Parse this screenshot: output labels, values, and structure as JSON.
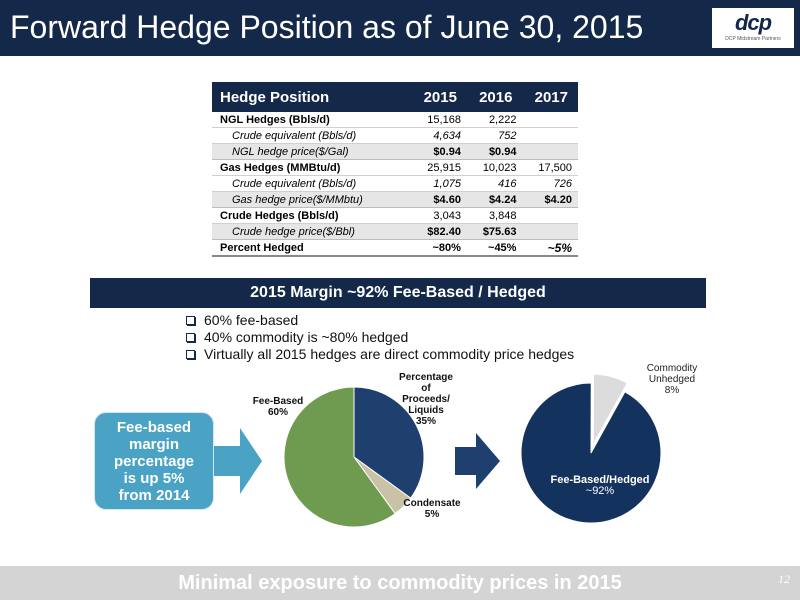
{
  "title": "Forward Hedge Position as of June 30, 2015",
  "logo": {
    "text": "dcp",
    "subtitle": "DCP Midstream Partners"
  },
  "table": {
    "headers": [
      "Hedge Position",
      "2015",
      "2016",
      "2017"
    ],
    "rows": [
      {
        "type": "main",
        "label": "NGL Hedges (Bbls/d)",
        "values": [
          "15,168",
          "2,222",
          ""
        ]
      },
      {
        "type": "sub",
        "label": "Crude equivalent (Bbls/d)",
        "values": [
          "4,634",
          "752",
          ""
        ]
      },
      {
        "type": "price",
        "label": "NGL hedge price($/Gal)",
        "values": [
          "$0.94",
          "$0.94",
          ""
        ]
      },
      {
        "type": "main",
        "label": "Gas Hedges (MMBtu/d)",
        "values": [
          "25,915",
          "10,023",
          "17,500"
        ]
      },
      {
        "type": "sub",
        "label": "Crude equivalent (Bbls/d)",
        "values": [
          "1,075",
          "416",
          "726"
        ]
      },
      {
        "type": "price",
        "label": "Gas hedge price($/MMbtu)",
        "values": [
          "$4.60",
          "$4.24",
          "$4.20"
        ]
      },
      {
        "type": "main",
        "label": "Crude Hedges (Bbls/d)",
        "values": [
          "3,043",
          "3,848",
          ""
        ]
      },
      {
        "type": "price",
        "label": "Crude hedge price($/Bbl)",
        "values": [
          "$82.40",
          "$75.63",
          ""
        ]
      },
      {
        "type": "pct",
        "label": "Percent Hedged",
        "values": [
          "~80%",
          "~45%",
          "~5%"
        ]
      }
    ]
  },
  "margin_banner": "2015 Margin ~92% Fee-Based / Hedged",
  "bullets": [
    "60% fee-based",
    "40% commodity is ~80% hedged",
    " Virtually all 2015 hedges are direct commodity price hedges"
  ],
  "callout": [
    "Fee-based",
    "margin",
    "percentage",
    "is up 5%",
    "from 2014"
  ],
  "chart_data": [
    {
      "type": "pie",
      "slices": [
        {
          "label": "Percentage of Proceeds/ Liquids",
          "value": 35,
          "value_label": "35%",
          "color": "#1f3f6e"
        },
        {
          "label": "Condensate",
          "value": 5,
          "value_label": "5%",
          "color": "#c9c2a6"
        },
        {
          "label": "Fee-Based",
          "value": 60,
          "value_label": "60%",
          "color": "#6e9b50"
        }
      ]
    },
    {
      "type": "pie",
      "slices": [
        {
          "label": "Fee-Based/Hedged",
          "value": 92,
          "value_label": "~92%",
          "color": "#14325e"
        },
        {
          "label": "Commodity Unhedged",
          "value": 8,
          "value_label": "8%",
          "color": "#dcdcdc"
        }
      ]
    }
  ],
  "pie_labels": {
    "pop": [
      "Percentage",
      "of",
      "Proceeds/",
      "Liquids",
      "35%"
    ],
    "condensate": [
      "Condensate",
      "5%"
    ],
    "fee": [
      "Fee-Based",
      "60%"
    ],
    "hedged": [
      "Fee-Based/Hedged",
      "~92%"
    ],
    "unhedged": [
      "Commodity",
      "Unhedged",
      "8%"
    ]
  },
  "footer": "Minimal exposure to commodity prices in 2015",
  "page_number": "12"
}
